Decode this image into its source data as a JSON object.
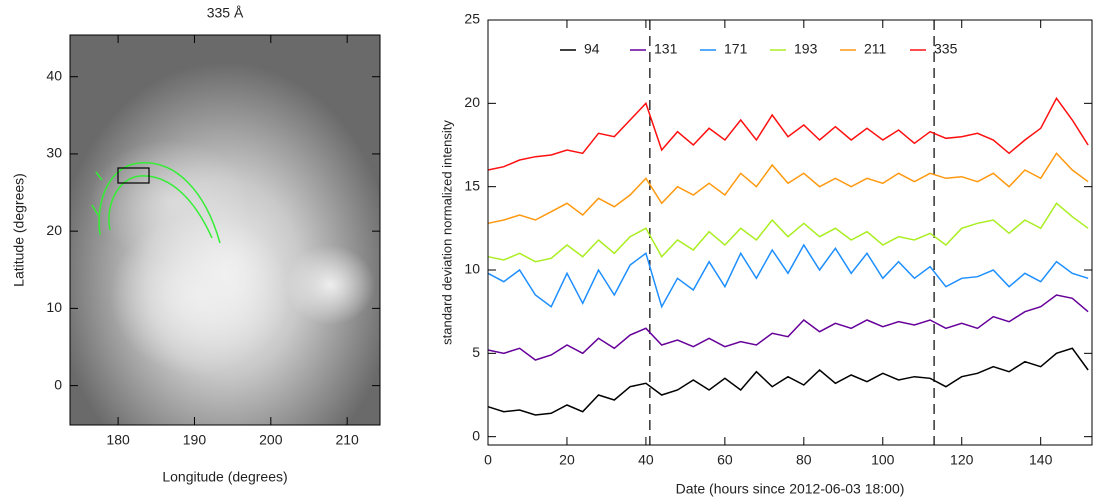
{
  "chart_data": [
    {
      "type": "image",
      "title": "335 Å",
      "xlabel": "Longitude (degrees)",
      "ylabel": "Latitude (degrees)",
      "xlim": [
        173.7,
        214.3
      ],
      "ylim": [
        -5.1,
        45.4
      ],
      "xticks": [
        180,
        190,
        200,
        210
      ],
      "yticks": [
        0,
        10,
        20,
        30,
        40
      ]
    },
    {
      "type": "line",
      "xlabel": "Date (hours since 2012-06-03 18:00)",
      "ylabel": "standard deviation normalized intensity",
      "xlim": [
        0,
        153
      ],
      "ylim": [
        -0.5,
        25
      ],
      "xticks": [
        0,
        20,
        40,
        60,
        80,
        100,
        120,
        140
      ],
      "yticks": [
        0,
        5,
        10,
        15,
        20,
        25
      ],
      "vlines": [
        41,
        113
      ],
      "legend": "top",
      "x": [
        0,
        4,
        8,
        12,
        16,
        20,
        24,
        28,
        32,
        36,
        40,
        44,
        48,
        52,
        56,
        60,
        64,
        68,
        72,
        76,
        80,
        84,
        88,
        92,
        96,
        100,
        104,
        108,
        112,
        116,
        120,
        124,
        128,
        132,
        136,
        140,
        144,
        148,
        152
      ],
      "series": [
        {
          "name": "94",
          "color": "#000000",
          "values": [
            1.8,
            1.5,
            1.6,
            1.3,
            1.4,
            1.9,
            1.5,
            2.5,
            2.2,
            3.0,
            3.2,
            2.5,
            2.8,
            3.4,
            2.8,
            3.5,
            2.8,
            3.9,
            3.0,
            3.6,
            3.1,
            4.0,
            3.2,
            3.7,
            3.3,
            3.8,
            3.4,
            3.6,
            3.5,
            3.0,
            3.6,
            3.8,
            4.2,
            3.9,
            4.5,
            4.2,
            5.0,
            5.3,
            4.0
          ]
        },
        {
          "name": "131",
          "color": "#66009a",
          "values": [
            5.2,
            5.0,
            5.3,
            4.6,
            4.9,
            5.5,
            5.0,
            5.9,
            5.3,
            6.1,
            6.5,
            5.5,
            5.8,
            5.4,
            5.9,
            5.4,
            5.7,
            5.5,
            6.2,
            6.0,
            7.0,
            6.3,
            6.8,
            6.5,
            7.0,
            6.6,
            6.9,
            6.7,
            7.0,
            6.5,
            6.8,
            6.5,
            7.2,
            6.9,
            7.5,
            7.8,
            8.5,
            8.3,
            7.5
          ]
        },
        {
          "name": "171",
          "color": "#1e8fff",
          "values": [
            9.8,
            9.3,
            10.0,
            8.5,
            7.8,
            9.8,
            8.0,
            10.0,
            8.5,
            10.3,
            11.0,
            7.8,
            9.5,
            8.8,
            10.5,
            9.0,
            11.0,
            9.5,
            11.2,
            9.8,
            11.5,
            10.0,
            11.3,
            9.8,
            11.0,
            9.5,
            10.5,
            9.5,
            10.2,
            9.0,
            9.5,
            9.6,
            10.0,
            9.0,
            9.8,
            9.3,
            10.5,
            9.8,
            9.5
          ]
        },
        {
          "name": "193",
          "color": "#aaee22",
          "values": [
            10.8,
            10.6,
            11.0,
            10.5,
            10.7,
            11.5,
            10.8,
            11.8,
            11.0,
            12.0,
            12.5,
            10.8,
            11.8,
            11.2,
            12.3,
            11.5,
            12.5,
            11.8,
            13.0,
            12.0,
            12.8,
            12.0,
            12.5,
            11.8,
            12.3,
            11.5,
            12.0,
            11.8,
            12.2,
            11.5,
            12.5,
            12.8,
            13.0,
            12.2,
            13.0,
            12.5,
            14.0,
            13.2,
            12.5
          ]
        },
        {
          "name": "211",
          "color": "#ff9910",
          "values": [
            12.8,
            13.0,
            13.3,
            13.0,
            13.5,
            14.0,
            13.3,
            14.3,
            13.8,
            14.5,
            15.5,
            14.0,
            15.0,
            14.5,
            15.2,
            14.5,
            15.8,
            15.0,
            16.3,
            15.2,
            15.8,
            15.0,
            15.5,
            15.0,
            15.5,
            15.2,
            15.8,
            15.3,
            15.8,
            15.5,
            15.6,
            15.3,
            15.8,
            15.0,
            16.0,
            15.5,
            17.0,
            16.0,
            15.3
          ]
        },
        {
          "name": "335",
          "color": "#ff1010",
          "values": [
            16.0,
            16.2,
            16.6,
            16.8,
            16.9,
            17.2,
            17.0,
            18.2,
            18.0,
            19.0,
            20.0,
            17.2,
            18.3,
            17.5,
            18.5,
            17.8,
            19.0,
            17.8,
            19.3,
            18.0,
            18.7,
            17.8,
            18.6,
            17.8,
            18.5,
            17.8,
            18.4,
            17.6,
            18.3,
            17.9,
            18.0,
            18.2,
            17.8,
            17.0,
            17.8,
            18.5,
            20.3,
            19.0,
            17.5
          ]
        }
      ]
    }
  ]
}
